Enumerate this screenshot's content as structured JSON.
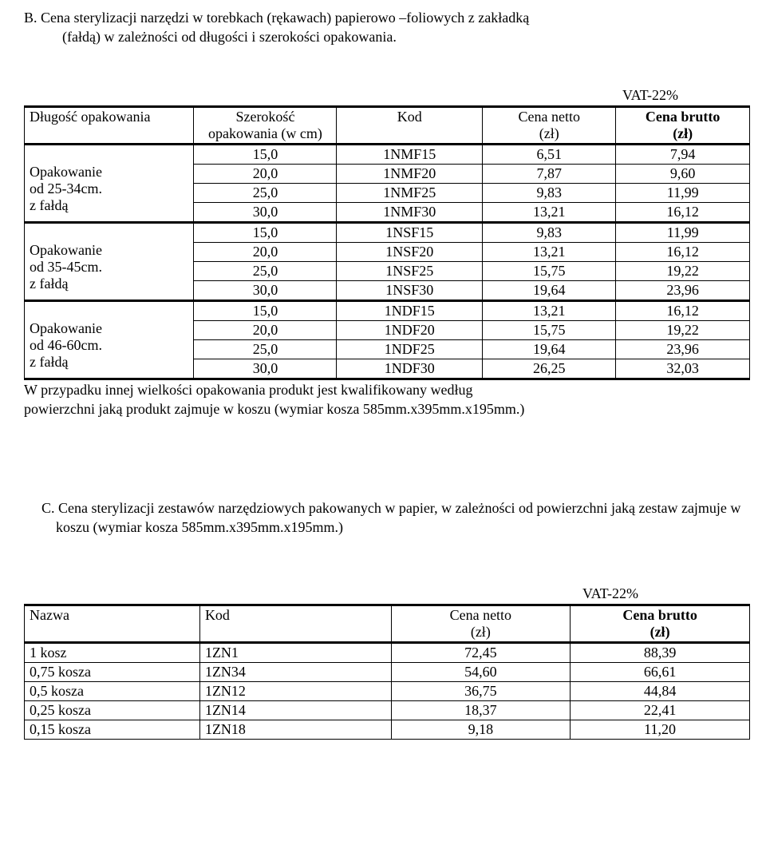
{
  "sectionB": {
    "title_line1": "B. Cena sterylizacji narzędzi w torebkach (rękawach) papierowo –foliowych z zakładką",
    "title_line2": "(fałdą) w zależności od długości i szerokości opakowania.",
    "vat_label": "VAT-22%",
    "headers": {
      "h1": "Długość opakowania",
      "h2a": "Szerokość",
      "h2b": "opakowania (w cm)",
      "h3": "Kod",
      "h4a": "Cena netto",
      "h4b": "(zł)",
      "h5a": "Cena brutto",
      "h5b": "(zł)"
    },
    "groups": [
      {
        "label_l1": "Opakowanie",
        "label_l2": "od 25-34cm.",
        "label_l3": "z fałdą",
        "rows": [
          {
            "w": "15,0",
            "kod": "1NMF15",
            "netto": "6,51",
            "brutto": "7,94"
          },
          {
            "w": "20,0",
            "kod": "1NMF20",
            "netto": "7,87",
            "brutto": "9,60"
          },
          {
            "w": "25,0",
            "kod": "1NMF25",
            "netto": "9,83",
            "brutto": "11,99"
          },
          {
            "w": "30,0",
            "kod": "1NMF30",
            "netto": "13,21",
            "brutto": "16,12"
          }
        ]
      },
      {
        "label_l1": "Opakowanie",
        "label_l2": "od 35-45cm.",
        "label_l3": "z fałdą",
        "rows": [
          {
            "w": "15,0",
            "kod": "1NSF15",
            "netto": "9,83",
            "brutto": "11,99"
          },
          {
            "w": "20,0",
            "kod": "1NSF20",
            "netto": "13,21",
            "brutto": "16,12"
          },
          {
            "w": "25,0",
            "kod": "1NSF25",
            "netto": "15,75",
            "brutto": "19,22"
          },
          {
            "w": "30,0",
            "kod": "1NSF30",
            "netto": "19,64",
            "brutto": "23,96"
          }
        ]
      },
      {
        "label_l1": "Opakowanie",
        "label_l2": "od 46-60cm.",
        "label_l3": "z fałdą",
        "rows": [
          {
            "w": "15,0",
            "kod": "1NDF15",
            "netto": "13,21",
            "brutto": "16,12"
          },
          {
            "w": "20,0",
            "kod": "1NDF20",
            "netto": "15,75",
            "brutto": "19,22"
          },
          {
            "w": "25,0",
            "kod": "1NDF25",
            "netto": "19,64",
            "brutto": "23,96"
          },
          {
            "w": "30,0",
            "kod": "1NDF30",
            "netto": "26,25",
            "brutto": "32,03"
          }
        ]
      }
    ],
    "note_l1": "W przypadku innej wielkości opakowania produkt jest kwalifikowany według",
    "note_l2": "powierzchni jaką produkt zajmuje w koszu (wymiar kosza 585mm.x395mm.x195mm.)"
  },
  "sectionC": {
    "title": "C. Cena sterylizacji zestawów narzędziowych pakowanych w papier, w zależności od powierzchni jaką zestaw  zajmuje w koszu (wymiar kosza 585mm.x395mm.x195mm.)",
    "vat_label": "VAT-22%",
    "headers": {
      "h1": "Nazwa",
      "h2": "Kod",
      "h3a": "Cena netto",
      "h3b": "(zł)",
      "h4a": "Cena brutto",
      "h4b": "(zł)"
    },
    "rows": [
      {
        "nazwa": "1 kosz",
        "kod": "1ZN1",
        "netto": "72,45",
        "brutto": "88,39"
      },
      {
        "nazwa": "0,75 kosza",
        "kod": "1ZN34",
        "netto": "54,60",
        "brutto": "66,61"
      },
      {
        "nazwa": "0,5 kosza",
        "kod": "1ZN12",
        "netto": "36,75",
        "brutto": "44,84"
      },
      {
        "nazwa": "0,25 kosza",
        "kod": "1ZN14",
        "netto": "18,37",
        "brutto": "22,41"
      },
      {
        "nazwa": "0,15 kosza",
        "kod": "1ZN18",
        "netto": "9,18",
        "brutto": "11,20"
      }
    ]
  }
}
